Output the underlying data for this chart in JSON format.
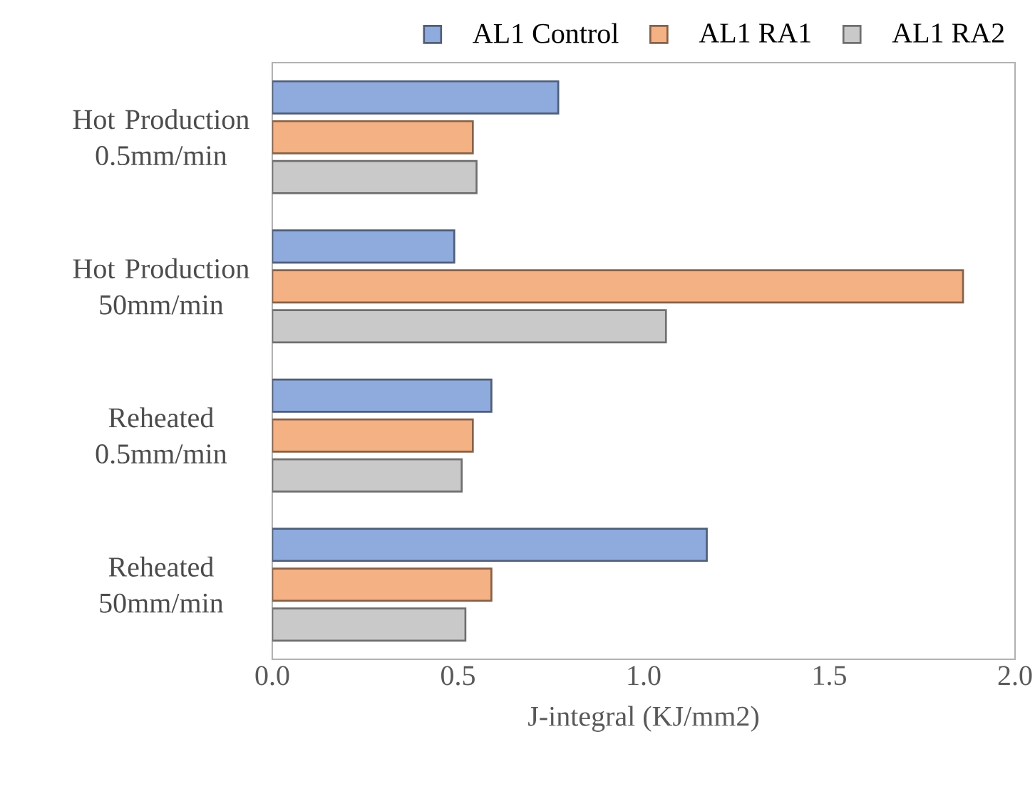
{
  "chart_data": {
    "type": "bar",
    "orientation": "horizontal",
    "categories": [
      "Hot Production 0.5mm/min",
      "Hot Production 50mm/min",
      "Reheated 0.5mm/min",
      "Reheated 50mm/min"
    ],
    "series": [
      {
        "name": "AL1 Control",
        "color": "#8faadc",
        "values": [
          0.77,
          0.49,
          0.59,
          1.17
        ]
      },
      {
        "name": "AL1 RA1",
        "color": "#f4b183",
        "values": [
          0.54,
          1.86,
          0.54,
          0.59
        ]
      },
      {
        "name": "AL1 RA2",
        "color": "#c9c9c9",
        "values": [
          0.55,
          1.06,
          0.51,
          0.52
        ]
      }
    ],
    "xlabel": "J-integral (KJ/mm2)",
    "xlim": [
      0,
      2.0
    ],
    "xticks": [
      {
        "value": 0,
        "label": "0.0"
      },
      0.5,
      {
        "value": 1,
        "label": "1.0"
      },
      1.5,
      {
        "value": 2,
        "label": "2.0"
      }
    ],
    "grid": false,
    "legend": "top"
  }
}
